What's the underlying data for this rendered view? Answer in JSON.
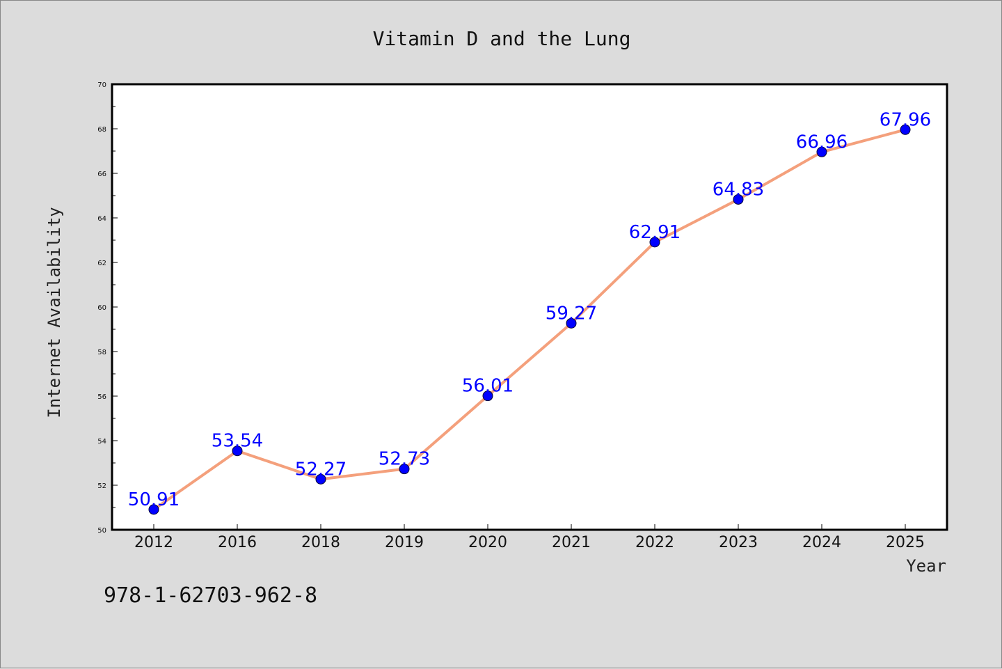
{
  "footer": {
    "isbn": "978-1-62703-962-8"
  },
  "colors": {
    "background": "#dcdcdc",
    "plot_background": "#ffffff",
    "line": "#f4a07c",
    "marker": "#0000ff",
    "data_label": "#0000ff",
    "axes": "#000000"
  },
  "chart_data": {
    "type": "line",
    "title": "Vitamin D and the Lung",
    "xlabel": "Year",
    "ylabel": "Internet Availability",
    "categories": [
      "2012",
      "2016",
      "2018",
      "2019",
      "2020",
      "2021",
      "2022",
      "2023",
      "2024",
      "2025"
    ],
    "series": [
      {
        "values": [
          50.91,
          53.54,
          52.27,
          52.73,
          56.01,
          59.27,
          62.91,
          64.83,
          66.96,
          67.96
        ]
      }
    ],
    "ylim": [
      50,
      70
    ],
    "yticks": [
      50,
      52,
      54,
      56,
      58,
      60,
      62,
      64,
      66,
      68,
      70
    ],
    "grid": false,
    "legend": "none",
    "data_labels": true
  }
}
